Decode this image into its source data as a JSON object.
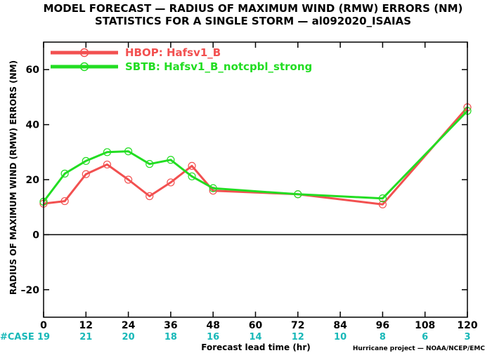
{
  "chart_data": {
    "type": "line",
    "title": "MODEL FORECAST — RADIUS OF MAXIMUM WIND (RMW) ERRORS (NM)",
    "subtitle": "STATISTICS FOR A SINGLE STORM — al092020_ISAIAS",
    "xlabel": "Forecast lead time (hr)",
    "ylabel": "RADIUS OF MAXIMUM WIND (RMW) ERRORS (NM)",
    "xlim": [
      0,
      120
    ],
    "ylim": [
      -30,
      70
    ],
    "x_ticks": [
      0,
      12,
      24,
      36,
      48,
      60,
      72,
      84,
      96,
      108,
      120
    ],
    "y_ticks": [
      -20,
      0,
      20,
      40,
      60
    ],
    "y_tick_labels": [
      "–20",
      "0",
      "20",
      "40",
      "60"
    ],
    "grid": false,
    "legend_position": "top-left",
    "case_label": "#CASE",
    "case_counts": [
      19,
      21,
      20,
      18,
      16,
      14,
      12,
      10,
      8,
      6,
      3
    ],
    "series": [
      {
        "name": "HBOP: Hafsv1_B",
        "color": "#f25050",
        "x": [
          0,
          6,
          12,
          18,
          24,
          30,
          36,
          42,
          48,
          72,
          96,
          120
        ],
        "values": [
          11.3,
          12.2,
          22.0,
          25.5,
          20.0,
          14.0,
          19.0,
          25.0,
          16.0,
          14.7,
          11.0,
          46.3
        ]
      },
      {
        "name": "SBTB: Hafsv1_B_notcpbl_strong",
        "color": "#22dd22",
        "x": [
          0,
          6,
          12,
          18,
          24,
          30,
          36,
          42,
          48,
          72,
          96,
          120
        ],
        "values": [
          12.0,
          22.2,
          26.8,
          30.0,
          30.3,
          25.7,
          27.2,
          21.2,
          16.9,
          14.7,
          13.2,
          45.0
        ]
      }
    ]
  },
  "footer": {
    "credit": "Hurricane project — NOAA/NCEP/EMC"
  }
}
